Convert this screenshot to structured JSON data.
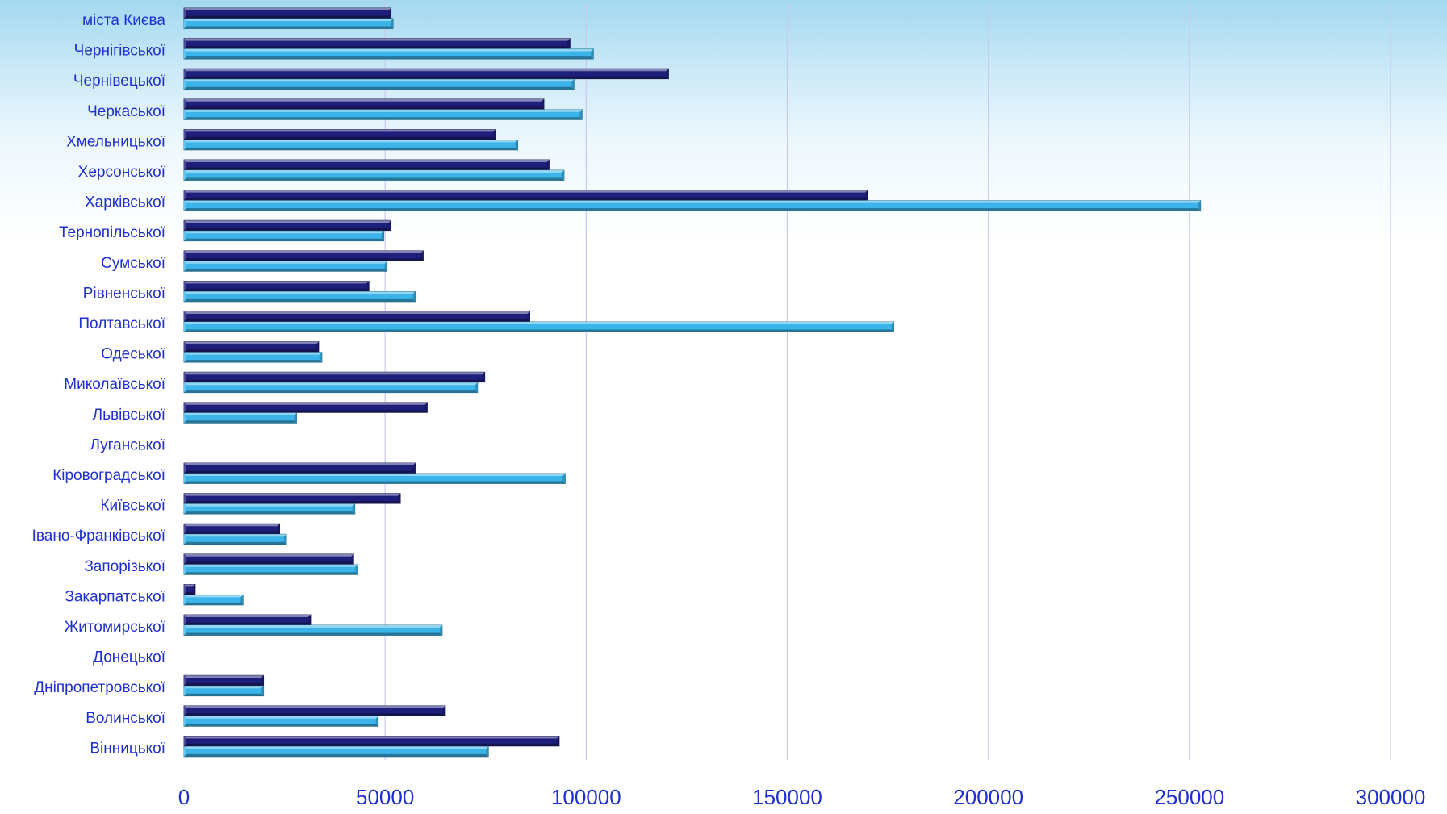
{
  "chart_data": {
    "type": "bar",
    "orientation": "horizontal",
    "categories": [
      "міста Києва",
      "Чернігівської",
      "Чернівецької",
      "Черкаської",
      "Хмельницької",
      "Херсонської",
      "Харківської",
      "Тернопільської",
      "Сумської",
      "Рівненської",
      "Полтавської",
      "Одеської",
      "Миколаївської",
      "Львівської",
      "Луганської",
      "Кіровоградської",
      "Київської",
      "Івано-Франківської",
      "Запорізької",
      "Закарпатської",
      "Житомирської",
      "Донецької",
      "Дніпропетровської",
      "Волинської",
      "Вінницької"
    ],
    "series": [
      {
        "color": "#1e1f7a",
        "values": [
          51500,
          96000,
          120500,
          89500,
          77500,
          90800,
          170000,
          51500,
          59500,
          46000,
          86000,
          33500,
          74800,
          60500,
          null,
          57500,
          53800,
          23800,
          42200,
          2800,
          31500,
          null,
          19800,
          65000,
          93300
        ]
      },
      {
        "color": "#3bb4ea",
        "values": [
          52000,
          101800,
          97000,
          99000,
          83000,
          94500,
          252800,
          49700,
          50500,
          57500,
          176500,
          34300,
          73000,
          28000,
          null,
          94800,
          42500,
          25500,
          43200,
          14700,
          64200,
          null,
          19800,
          48300,
          75700
        ]
      }
    ],
    "xlim": [
      0,
      300000
    ],
    "xticks": [
      0,
      50000,
      100000,
      150000,
      200000,
      250000,
      300000
    ],
    "xtick_labels": [
      "0",
      "50000",
      "100000",
      "150000",
      "200000",
      "250000",
      "300000"
    ],
    "grid": true,
    "legend": "none"
  }
}
